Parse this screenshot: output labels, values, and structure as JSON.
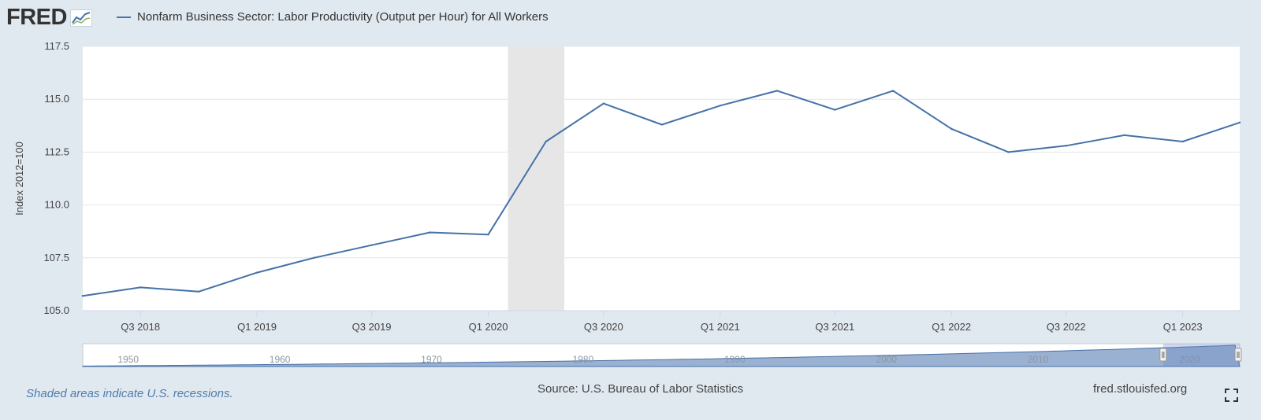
{
  "header": {
    "logo_text": "FRED",
    "legend_label": "Nonfarm Business Sector: Labor Productivity (Output per Hour) for All Workers"
  },
  "colors": {
    "background": "#e1e9f0",
    "plot_background": "#ffffff",
    "series": "#4572a7",
    "recession_shade": "#e6e6e6",
    "navigator_fill": "#8fa9cc"
  },
  "chart_data": {
    "type": "line",
    "title": "",
    "xlabel": "",
    "ylabel": "Index 2012=100",
    "ylim": [
      105.0,
      117.5
    ],
    "y_ticks": [
      "105.0",
      "107.5",
      "110.0",
      "112.5",
      "115.0",
      "117.5"
    ],
    "x_ticks": [
      "Q3 2018",
      "Q1 2019",
      "Q3 2019",
      "Q1 2020",
      "Q3 2020",
      "Q1 2021",
      "Q3 2021",
      "Q1 2022",
      "Q3 2022",
      "Q1 2023"
    ],
    "grid": true,
    "legend_position": "top-left",
    "recession_shading": {
      "start": "2020-02",
      "end": "2020-04"
    },
    "series": [
      {
        "name": "Nonfarm Business Sector: Labor Productivity (Output per Hour) for All Workers",
        "x": [
          "2018-04-01",
          "2018-07-01",
          "2018-10-01",
          "2019-01-01",
          "2019-04-01",
          "2019-07-01",
          "2019-10-01",
          "2020-01-01",
          "2020-04-01",
          "2020-07-01",
          "2020-10-01",
          "2021-01-01",
          "2021-04-01",
          "2021-07-01",
          "2021-10-01",
          "2022-01-01",
          "2022-04-01",
          "2022-07-01",
          "2022-10-01",
          "2023-01-01",
          "2023-04-01"
        ],
        "values": [
          105.7,
          106.1,
          105.9,
          106.8,
          107.5,
          108.1,
          108.7,
          108.6,
          113.0,
          114.8,
          113.8,
          114.7,
          115.4,
          114.5,
          115.4,
          113.6,
          112.5,
          112.8,
          113.3,
          113.0,
          113.9
        ]
      }
    ],
    "navigator": {
      "labels": [
        "1950",
        "1960",
        "1970",
        "1980",
        "1990",
        "2000",
        "2010",
        "2020"
      ]
    }
  },
  "footer": {
    "recession_note": "Shaded areas indicate U.S. recessions.",
    "source": "Source: U.S. Bureau of Labor Statistics",
    "url": "fred.stlouisfed.org"
  }
}
